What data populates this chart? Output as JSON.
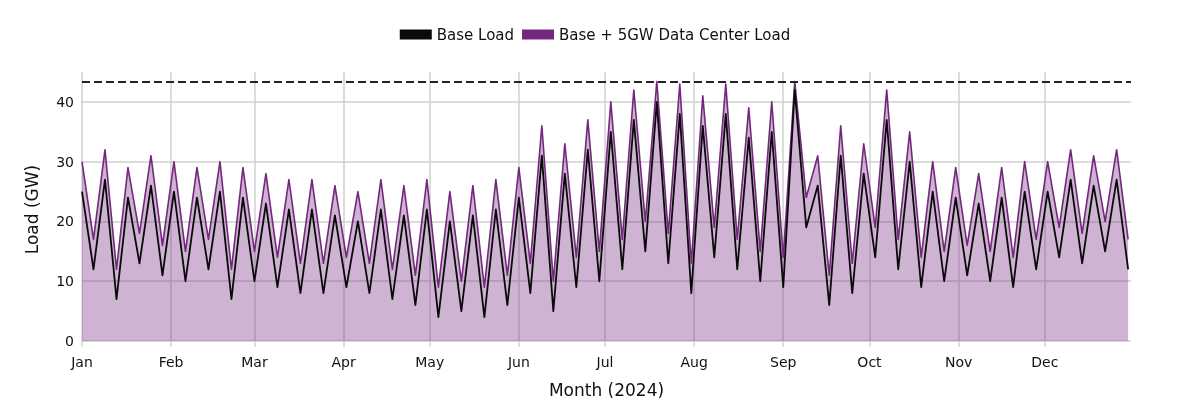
{
  "chart_data": {
    "type": "line",
    "xlabel": "Month (2024)",
    "ylabel": "Load (GW)",
    "x": [
      "2024-01-01",
      "2024-01-05",
      "2024-01-09",
      "2024-01-13",
      "2024-01-17",
      "2024-01-21",
      "2024-01-25",
      "2024-01-29",
      "2024-02-02",
      "2024-02-06",
      "2024-02-10",
      "2024-02-14",
      "2024-02-18",
      "2024-02-22",
      "2024-02-26",
      "2024-03-01",
      "2024-03-05",
      "2024-03-09",
      "2024-03-13",
      "2024-03-17",
      "2024-03-21",
      "2024-03-25",
      "2024-03-29",
      "2024-04-02",
      "2024-04-06",
      "2024-04-10",
      "2024-04-14",
      "2024-04-18",
      "2024-04-22",
      "2024-04-26",
      "2024-04-30",
      "2024-05-04",
      "2024-05-08",
      "2024-05-12",
      "2024-05-16",
      "2024-05-20",
      "2024-05-24",
      "2024-05-28",
      "2024-06-01",
      "2024-06-05",
      "2024-06-09",
      "2024-06-13",
      "2024-06-17",
      "2024-06-21",
      "2024-06-25",
      "2024-06-29",
      "2024-07-03",
      "2024-07-07",
      "2024-07-11",
      "2024-07-15",
      "2024-07-19",
      "2024-07-23",
      "2024-07-27",
      "2024-07-31",
      "2024-08-04",
      "2024-08-08",
      "2024-08-12",
      "2024-08-16",
      "2024-08-20",
      "2024-08-24",
      "2024-08-28",
      "2024-09-01",
      "2024-09-05",
      "2024-09-09",
      "2024-09-13",
      "2024-09-17",
      "2024-09-21",
      "2024-09-25",
      "2024-09-29",
      "2024-10-03",
      "2024-10-07",
      "2024-10-11",
      "2024-10-15",
      "2024-10-19",
      "2024-10-23",
      "2024-10-27",
      "2024-10-31",
      "2024-11-04",
      "2024-11-08",
      "2024-11-12",
      "2024-11-16",
      "2024-11-20",
      "2024-11-24",
      "2024-11-28",
      "2024-12-02",
      "2024-12-06",
      "2024-12-10",
      "2024-12-14",
      "2024-12-18",
      "2024-12-22",
      "2024-12-26",
      "2024-12-30"
    ],
    "series": [
      {
        "name": "Base Load",
        "color": "#0a0a0a",
        "values": [
          25,
          12,
          27,
          7,
          24,
          13,
          26,
          11,
          25,
          10,
          24,
          12,
          25,
          7,
          24,
          10,
          23,
          9,
          22,
          8,
          22,
          8,
          21,
          9,
          20,
          8,
          22,
          7,
          21,
          6,
          22,
          4,
          20,
          5,
          21,
          4,
          22,
          6,
          24,
          8,
          31,
          5,
          28,
          9,
          32,
          10,
          35,
          12,
          37,
          15,
          40,
          13,
          38,
          8,
          36,
          14,
          38,
          12,
          34,
          10,
          35,
          9,
          42,
          19,
          26,
          6,
          31,
          8,
          28,
          14,
          37,
          12,
          30,
          9,
          25,
          10,
          24,
          11,
          23,
          10,
          24,
          9,
          25,
          12,
          25,
          14,
          27,
          13,
          26,
          15,
          27,
          12
        ]
      },
      {
        "name": "Base + 5GW Data Center Load",
        "type": "area",
        "color": "#74287d",
        "values": [
          30,
          17,
          32,
          12,
          29,
          18,
          31,
          16,
          30,
          15,
          29,
          17,
          30,
          12,
          29,
          15,
          28,
          14,
          27,
          13,
          27,
          13,
          26,
          14,
          25,
          13,
          27,
          12,
          26,
          11,
          27,
          9,
          25,
          10,
          26,
          9,
          27,
          11,
          29,
          13,
          36,
          10,
          33,
          14,
          37,
          15,
          40,
          17,
          42,
          20,
          43.4,
          18,
          43,
          13,
          41,
          19,
          43,
          17,
          39,
          15,
          40,
          14,
          43.4,
          24,
          31,
          11,
          36,
          13,
          33,
          19,
          42,
          17,
          35,
          14,
          30,
          15,
          29,
          16,
          28,
          15,
          29,
          14,
          30,
          17,
          30,
          19,
          32,
          18,
          31,
          20,
          32,
          17
        ]
      }
    ],
    "xlim": [
      "2024-01-01",
      "2024-12-31"
    ],
    "xticks": [
      {
        "value": "2024-01-01",
        "label": "Jan"
      },
      {
        "value": "2024-02-01",
        "label": "Feb"
      },
      {
        "value": "2024-03-01",
        "label": "Mar"
      },
      {
        "value": "2024-04-01",
        "label": "Apr"
      },
      {
        "value": "2024-05-01",
        "label": "May"
      },
      {
        "value": "2024-06-01",
        "label": "Jun"
      },
      {
        "value": "2024-07-01",
        "label": "Jul"
      },
      {
        "value": "2024-08-01",
        "label": "Aug"
      },
      {
        "value": "2024-09-01",
        "label": "Sep"
      },
      {
        "value": "2024-10-01",
        "label": "Oct"
      },
      {
        "value": "2024-11-01",
        "label": "Nov"
      },
      {
        "value": "2024-12-01",
        "label": "Dec"
      }
    ],
    "ylim": [
      -1,
      45
    ],
    "yticks": [
      0,
      10,
      20,
      30,
      40
    ],
    "ref_lines": [
      {
        "axis": "y",
        "value": 43.4,
        "color": "#222222",
        "line_style": "dashed"
      }
    ],
    "grid": true,
    "legend": "top",
    "marker": "none",
    "line_style": "solid"
  }
}
